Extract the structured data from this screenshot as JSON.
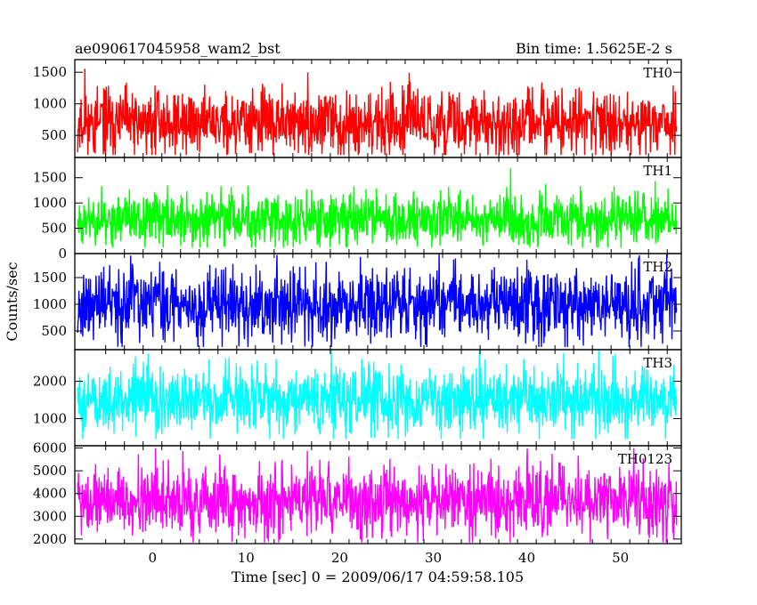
{
  "header": {
    "title": "ae090617045958_wam2_bst",
    "bin_time": "Bin time: 1.5625E-2 s"
  },
  "chart_data": {
    "type": "line",
    "xlabel": "Time [sec] 0 = 2009/06/17 04:59:58.105",
    "ylabel": "Counts/sec",
    "xlim": [
      -8.3,
      56.5
    ],
    "x_range": [
      -8,
      56
    ],
    "x_ticks": [
      0,
      10,
      20,
      30,
      40,
      50
    ],
    "panels": [
      {
        "name": "TH0",
        "color": "#ff0000",
        "ylim": [
          150,
          1700
        ],
        "y_ticks": [
          500,
          1000,
          1500
        ],
        "mean": 700,
        "spread": 260,
        "floor": 190,
        "ceil": 1700,
        "seed": 11
      },
      {
        "name": "TH1",
        "color": "#00ff00",
        "ylim": [
          0,
          1900
        ],
        "y_ticks": [
          0,
          500,
          1000,
          1500
        ],
        "mean": 680,
        "spread": 260,
        "floor": 120,
        "ceil": 1880,
        "seed": 23
      },
      {
        "name": "TH2",
        "color": "#0000ff",
        "ylim": [
          150,
          1950
        ],
        "y_ticks": [
          500,
          1000,
          1500
        ],
        "mean": 1000,
        "spread": 340,
        "floor": 200,
        "ceil": 1950,
        "seed": 37
      },
      {
        "name": "TH3",
        "color": "#00ffff",
        "ylim": [
          270,
          2850
        ],
        "y_ticks": [
          1000,
          2000
        ],
        "mean": 1500,
        "spread": 440,
        "floor": 450,
        "ceil": 2850,
        "seed": 51
      },
      {
        "name": "TH0123",
        "color": "#ff00ff",
        "ylim": [
          1800,
          6100
        ],
        "y_ticks": [
          2000,
          3000,
          4000,
          5000,
          6000
        ],
        "mean": 3700,
        "spread": 760,
        "floor": 1850,
        "ceil": 6000,
        "seed": 73
      }
    ]
  }
}
